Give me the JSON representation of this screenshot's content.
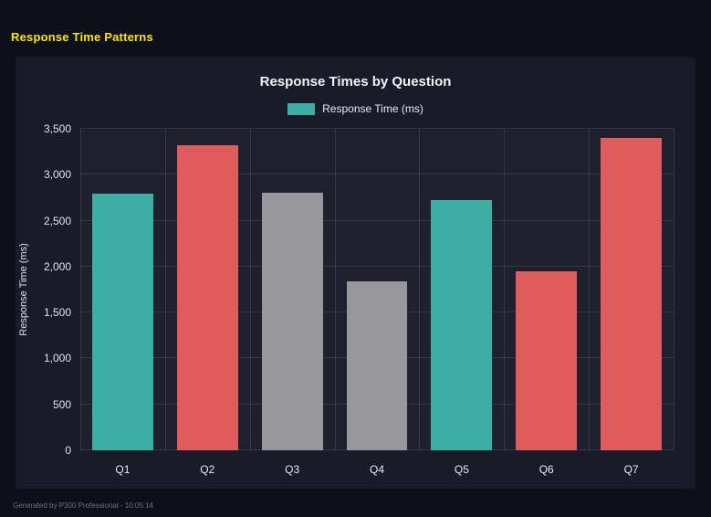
{
  "page": {
    "title": "Response Time Patterns",
    "footer": "Generated by P300 Professional - 10:05:14"
  },
  "chart_data": {
    "type": "bar",
    "title": "Response Times by Question",
    "legend": [
      {
        "label": "Response Time (ms)",
        "color": "#3caea3"
      }
    ],
    "categories": [
      "Q1",
      "Q2",
      "Q3",
      "Q4",
      "Q5",
      "Q6",
      "Q7"
    ],
    "values": [
      2790,
      3320,
      2800,
      1840,
      2720,
      1950,
      3400
    ],
    "bar_colors": [
      "#3caea3",
      "#e05c5c",
      "#97979c",
      "#97979c",
      "#3caea3",
      "#e05c5c",
      "#e05c5c"
    ],
    "xlabel": "",
    "ylabel": "Response Time (ms)",
    "ylim": [
      0,
      3500
    ],
    "ytick_step": 500,
    "grid": true,
    "legend_position": "top"
  }
}
